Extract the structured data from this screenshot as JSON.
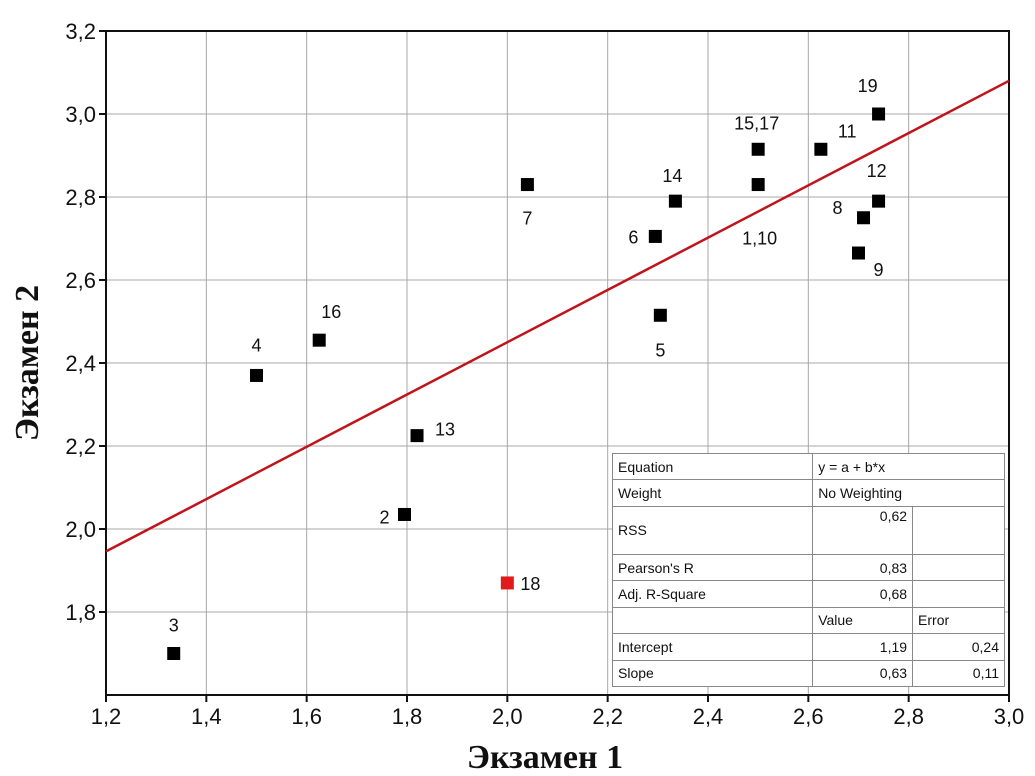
{
  "chart_data": {
    "type": "scatter",
    "xlabel": "Экзамен 1",
    "ylabel": "Экзамен 2",
    "xlim": [
      1.2,
      3.0
    ],
    "ylim": [
      1.6,
      3.2
    ],
    "grid": true,
    "x_ticks": [
      "1,2",
      "1,4",
      "1,6",
      "1,8",
      "2,0",
      "2,2",
      "2,4",
      "2,6",
      "2,8",
      "3,0"
    ],
    "y_ticks": [
      "1,8",
      "2,0",
      "2,2",
      "2,4",
      "2,6",
      "2,8",
      "3,0",
      "3,2"
    ],
    "points": [
      {
        "label": "3",
        "x": 1.335,
        "y": 1.7,
        "color": "#000000"
      },
      {
        "label": "4",
        "x": 1.5,
        "y": 2.37,
        "color": "#000000"
      },
      {
        "label": "16",
        "x": 1.625,
        "y": 2.455,
        "color": "#000000"
      },
      {
        "label": "2",
        "x": 1.795,
        "y": 2.035,
        "color": "#000000"
      },
      {
        "label": "13",
        "x": 1.82,
        "y": 2.225,
        "color": "#000000"
      },
      {
        "label": "18",
        "x": 2.0,
        "y": 1.87,
        "color": "#e11b1b"
      },
      {
        "label": "7",
        "x": 2.04,
        "y": 2.83,
        "color": "#000000"
      },
      {
        "label": "6",
        "x": 2.295,
        "y": 2.705,
        "color": "#000000"
      },
      {
        "label": "5",
        "x": 2.305,
        "y": 2.515,
        "color": "#000000"
      },
      {
        "label": "14",
        "x": 2.335,
        "y": 2.79,
        "color": "#000000"
      },
      {
        "label": "15,17",
        "x": 2.5,
        "y": 2.915,
        "color": "#000000"
      },
      {
        "label": "1,10",
        "x": 2.5,
        "y": 2.83,
        "color": "#000000"
      },
      {
        "label": "11",
        "x": 2.625,
        "y": 2.915,
        "color": "#000000"
      },
      {
        "label": "9",
        "x": 2.7,
        "y": 2.665,
        "color": "#000000"
      },
      {
        "label": "8",
        "x": 2.71,
        "y": 2.75,
        "color": "#000000"
      },
      {
        "label": "12",
        "x": 2.74,
        "y": 2.79,
        "color": "#000000"
      },
      {
        "label": "19",
        "x": 2.74,
        "y": 3.0,
        "color": "#000000"
      }
    ],
    "fit_line": {
      "intercept": 1.19,
      "slope": 0.63,
      "color": "#c0141c"
    }
  },
  "stats_table": {
    "equation_label": "Equation",
    "equation_value": "y = a + b*x",
    "weight_label": "Weight",
    "weight_value": "No Weighting",
    "rss_label": "RSS",
    "rss_value": "0,62",
    "pearson_label": "Pearson's R",
    "pearson_value": "0,83",
    "adjr_label": "Adj. R-Square",
    "adjr_value": "0,68",
    "value_header": "Value",
    "error_header": "Error",
    "intercept_label": "Intercept",
    "intercept_value": "1,19",
    "intercept_error": "0,24",
    "slope_label": "Slope",
    "slope_value": "0,63",
    "slope_error": "0,11"
  }
}
